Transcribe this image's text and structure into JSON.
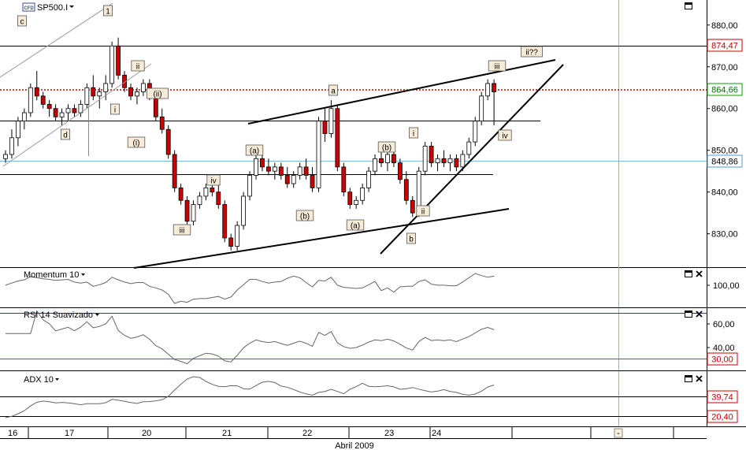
{
  "symbol": {
    "name": "SP500.I",
    "badge": "CFD"
  },
  "panels": {
    "momentum": {
      "label": "Momentum 10"
    },
    "rsi": {
      "label": "RSI 14 Suavizado"
    },
    "adx": {
      "label": "ADX 10"
    }
  },
  "x_axis_label": "Abril 2009",
  "day_labels": [
    "16",
    "17",
    "20",
    "21",
    "22",
    "23",
    "24"
  ],
  "price_ticks": [
    "880,00",
    "870,00",
    "860,00",
    "850,00",
    "840,00",
    "830,00"
  ],
  "momentum_ticks": [
    "100,00"
  ],
  "rsi_ticks": [
    "60,00",
    "40,00"
  ],
  "price_badges": {
    "line_top": "874,47",
    "last": "864,66",
    "cursor": "848,86"
  },
  "rsi_badges": {
    "low": "30,00"
  },
  "adx_badges": {
    "upper": "39,74",
    "lower": "20,40"
  },
  "scroll_marker": "-",
  "colors": {
    "up": "#ffffff",
    "down": "#cc0000",
    "resistance": "#cc0000",
    "rsi_high": "#cc0000",
    "rsi_low": "#00a000",
    "cursor": "#7fb8e0"
  },
  "chart_data": {
    "type": "candlestick",
    "x_label": "Abril 2009",
    "days": [
      "16",
      "17",
      "20",
      "21",
      "22",
      "23",
      "24"
    ],
    "ylim": [
      822,
      886
    ],
    "candles": [
      [
        848,
        850,
        847,
        849
      ],
      [
        849,
        855,
        848,
        853
      ],
      [
        853,
        858,
        851,
        857
      ],
      [
        857,
        860,
        855,
        859
      ],
      [
        859,
        866,
        858,
        865
      ],
      [
        865,
        869,
        862,
        863
      ],
      [
        863,
        864,
        860,
        861
      ],
      [
        861,
        862,
        858,
        860
      ],
      [
        860,
        861,
        857,
        858
      ],
      [
        858,
        860,
        856,
        859
      ],
      [
        859,
        861,
        857,
        860
      ],
      [
        860,
        861,
        858,
        859
      ],
      [
        859,
        862,
        858,
        861
      ],
      [
        861,
        866,
        860,
        865
      ],
      [
        865,
        868,
        862,
        863
      ],
      [
        863,
        865,
        860,
        864
      ],
      [
        864,
        868,
        862,
        866
      ],
      [
        866,
        876,
        865,
        875
      ],
      [
        875,
        877,
        867,
        868
      ],
      [
        868,
        869,
        864,
        865
      ],
      [
        865,
        866,
        862,
        863
      ],
      [
        863,
        865,
        861,
        864
      ],
      [
        864,
        867,
        863,
        866
      ],
      [
        866,
        867,
        862,
        863
      ],
      [
        863,
        864,
        857,
        858
      ],
      [
        858,
        860,
        854,
        855
      ],
      [
        855,
        856,
        848,
        849
      ],
      [
        849,
        850,
        840,
        841
      ],
      [
        841,
        842,
        837,
        838
      ],
      [
        838,
        839,
        832,
        833
      ],
      [
        833,
        838,
        832,
        837
      ],
      [
        837,
        840,
        836,
        839
      ],
      [
        839,
        842,
        838,
        841
      ],
      [
        841,
        843,
        839,
        840
      ],
      [
        840,
        842,
        836,
        837
      ],
      [
        837,
        838,
        828,
        829
      ],
      [
        829,
        830,
        826,
        827
      ],
      [
        827,
        833,
        826,
        832
      ],
      [
        832,
        840,
        831,
        839
      ],
      [
        839,
        845,
        838,
        844
      ],
      [
        844,
        849,
        843,
        848
      ],
      [
        848,
        850,
        845,
        846
      ],
      [
        846,
        848,
        844,
        845
      ],
      [
        845,
        847,
        843,
        846
      ],
      [
        846,
        847,
        843,
        844
      ],
      [
        844,
        846,
        841,
        842
      ],
      [
        842,
        845,
        841,
        844
      ],
      [
        844,
        847,
        843,
        846
      ],
      [
        846,
        848,
        843,
        844
      ],
      [
        844,
        846,
        840,
        841
      ],
      [
        841,
        858,
        840,
        857
      ],
      [
        857,
        860,
        852,
        854
      ],
      [
        854,
        862,
        853,
        860
      ],
      [
        860,
        861,
        845,
        846
      ],
      [
        846,
        847,
        839,
        840
      ],
      [
        840,
        841,
        836,
        837
      ],
      [
        837,
        839,
        836,
        838
      ],
      [
        838,
        842,
        837,
        841
      ],
      [
        841,
        846,
        840,
        845
      ],
      [
        845,
        849,
        844,
        848
      ],
      [
        848,
        850,
        846,
        847
      ],
      [
        847,
        850,
        845,
        849
      ],
      [
        849,
        851,
        846,
        847
      ],
      [
        847,
        848,
        842,
        843
      ],
      [
        843,
        845,
        837,
        838
      ],
      [
        838,
        839,
        834,
        835
      ],
      [
        835,
        846,
        834,
        845
      ],
      [
        845,
        852,
        844,
        851
      ],
      [
        851,
        852,
        846,
        847
      ],
      [
        847,
        849,
        845,
        848
      ],
      [
        848,
        850,
        846,
        847
      ],
      [
        847,
        849,
        845,
        848
      ],
      [
        848,
        849,
        845,
        846
      ],
      [
        846,
        850,
        845,
        849
      ],
      [
        849,
        853,
        848,
        852
      ],
      [
        852,
        858,
        851,
        857
      ],
      [
        857,
        864,
        856,
        863
      ],
      [
        863,
        867,
        862,
        866
      ],
      [
        866,
        867,
        856,
        864
      ]
    ],
    "annotations": {
      "wave_labels": [
        "c",
        "1",
        "ii",
        "i",
        "d",
        "(ii)",
        "(i)",
        "iv",
        "iii",
        "(a)",
        "(b)",
        "a",
        "(a)",
        "i",
        "(b)",
        "ii",
        "b",
        "iii",
        "ii??",
        "iv"
      ],
      "levels": [
        874.47,
        858,
        846.5,
        864.66
      ]
    }
  }
}
